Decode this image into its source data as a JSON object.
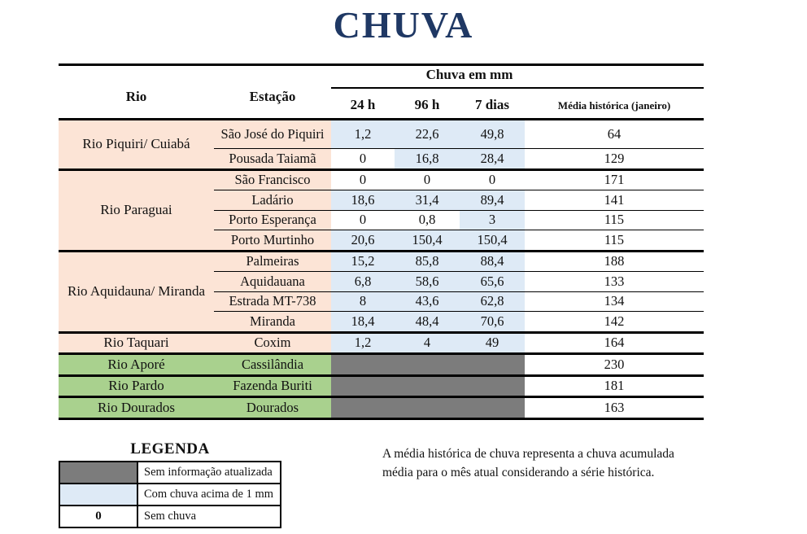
{
  "title": "CHUVA",
  "colors": {
    "navy": "#1F3864",
    "peach": "#FCE4D6",
    "blue": "#DEEAF6",
    "green": "#A9D18E",
    "gray": "#7C7C7C"
  },
  "table": {
    "headers": {
      "rio": "Rio",
      "estacao": "Estação",
      "group": "Chuva em mm",
      "h24": "24 h",
      "h96": "96 h",
      "d7": "7 dias",
      "media": "Média histórica (janeiro)"
    },
    "groups": [
      {
        "rio": "Rio Piquiri/ Cuiabá",
        "tone": "peach",
        "rows": [
          {
            "estacao": "São José do Piquiri",
            "cells": [
              {
                "v": "1,2",
                "s": "rain"
              },
              {
                "v": "22,6",
                "s": "rain"
              },
              {
                "v": "49,8",
                "s": "rain"
              }
            ],
            "media": "64"
          },
          {
            "estacao": "Pousada Taiamã",
            "cells": [
              {
                "v": "0",
                "s": "none"
              },
              {
                "v": "16,8",
                "s": "rain"
              },
              {
                "v": "28,4",
                "s": "rain"
              }
            ],
            "media": "129"
          }
        ]
      },
      {
        "rio": "Rio Paraguai",
        "tone": "peach",
        "rows": [
          {
            "estacao": "São Francisco",
            "cells": [
              {
                "v": "0",
                "s": "none"
              },
              {
                "v": "0",
                "s": "none"
              },
              {
                "v": "0",
                "s": "none"
              }
            ],
            "media": "171"
          },
          {
            "estacao": "Ladário",
            "cells": [
              {
                "v": "18,6",
                "s": "rain"
              },
              {
                "v": "31,4",
                "s": "rain"
              },
              {
                "v": "89,4",
                "s": "rain"
              }
            ],
            "media": "141"
          },
          {
            "estacao": "Porto Esperança",
            "cells": [
              {
                "v": "0",
                "s": "none"
              },
              {
                "v": "0,8",
                "s": "none"
              },
              {
                "v": "3",
                "s": "rain"
              }
            ],
            "media": "115"
          },
          {
            "estacao": "Porto Murtinho",
            "cells": [
              {
                "v": "20,6",
                "s": "rain"
              },
              {
                "v": "150,4",
                "s": "rain"
              },
              {
                "v": "150,4",
                "s": "rain"
              }
            ],
            "media": "115"
          }
        ]
      },
      {
        "rio": "Rio Aquidauna/ Miranda",
        "tone": "peach",
        "rows": [
          {
            "estacao": "Palmeiras",
            "cells": [
              {
                "v": "15,2",
                "s": "rain"
              },
              {
                "v": "85,8",
                "s": "rain"
              },
              {
                "v": "88,4",
                "s": "rain"
              }
            ],
            "media": "188"
          },
          {
            "estacao": "Aquidauana",
            "cells": [
              {
                "v": "6,8",
                "s": "rain"
              },
              {
                "v": "58,6",
                "s": "rain"
              },
              {
                "v": "65,6",
                "s": "rain"
              }
            ],
            "media": "133"
          },
          {
            "estacao": "Estrada MT-738",
            "cells": [
              {
                "v": "8",
                "s": "rain"
              },
              {
                "v": "43,6",
                "s": "rain"
              },
              {
                "v": "62,8",
                "s": "rain"
              }
            ],
            "media": "134"
          },
          {
            "estacao": "Miranda",
            "cells": [
              {
                "v": "18,4",
                "s": "rain"
              },
              {
                "v": "48,4",
                "s": "rain"
              },
              {
                "v": "70,6",
                "s": "rain"
              }
            ],
            "media": "142"
          }
        ]
      },
      {
        "rio": "Rio Taquari",
        "tone": "peach",
        "rows": [
          {
            "estacao": "Coxim",
            "cells": [
              {
                "v": "1,2",
                "s": "rain"
              },
              {
                "v": "4",
                "s": "rain"
              },
              {
                "v": "49",
                "s": "rain"
              }
            ],
            "media": "164"
          }
        ]
      },
      {
        "rio": "Rio Aporé",
        "tone": "green",
        "rows": [
          {
            "estacao": "Cassilândia",
            "cells": [
              {
                "v": "",
                "s": "noinfo"
              },
              {
                "v": "",
                "s": "noinfo"
              },
              {
                "v": "",
                "s": "noinfo"
              }
            ],
            "media": "230"
          }
        ]
      },
      {
        "rio": "Rio Pardo",
        "tone": "green",
        "rows": [
          {
            "estacao": "Fazenda Buriti",
            "cells": [
              {
                "v": "",
                "s": "noinfo"
              },
              {
                "v": "",
                "s": "noinfo"
              },
              {
                "v": "",
                "s": "noinfo"
              }
            ],
            "media": "181"
          }
        ]
      },
      {
        "rio": "Rio Dourados",
        "tone": "green",
        "rows": [
          {
            "estacao": "Dourados",
            "cells": [
              {
                "v": "",
                "s": "noinfo"
              },
              {
                "v": "",
                "s": "noinfo"
              },
              {
                "v": "",
                "s": "noinfo"
              }
            ],
            "media": "163"
          }
        ]
      }
    ]
  },
  "legend": {
    "title": "LEGENDA",
    "items": [
      {
        "swatch": "noinfo",
        "swatch_text": "",
        "label": "Sem informação atualizada"
      },
      {
        "swatch": "rain",
        "swatch_text": "",
        "label": "Com chuva acima de 1 mm"
      },
      {
        "swatch": "zero",
        "swatch_text": "0",
        "label": "Sem chuva"
      }
    ]
  },
  "note": "A média histórica de chuva representa a chuva acumulada média para o mês atual considerando a série histórica."
}
